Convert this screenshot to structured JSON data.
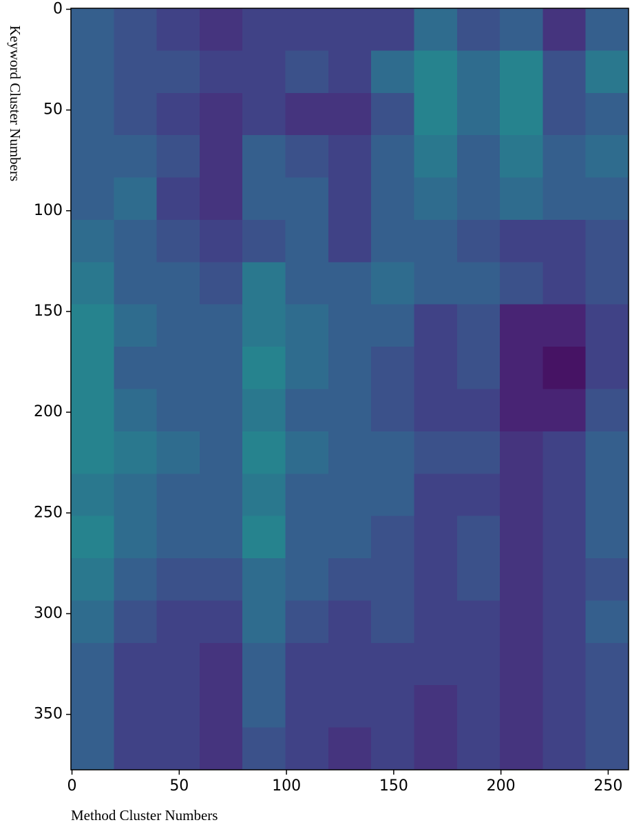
{
  "chart_data": {
    "type": "heatmap",
    "x_label": "Method Cluster Numbers",
    "y_label": "Keyword Cluster Numbers",
    "xlim": [
      -0.5,
      259.5
    ],
    "ylim": [
      -0.5,
      377.5
    ],
    "y_inverted": true,
    "xticks": [
      0,
      50,
      100,
      150,
      200,
      250
    ],
    "yticks": [
      0,
      50,
      100,
      150,
      200,
      250,
      300,
      350
    ],
    "x_bins": [
      -0.5,
      19.5,
      39.5,
      59.5,
      79.5,
      99.5,
      119.5,
      139.5,
      159.5,
      179.5,
      199.5,
      219.5,
      239.5,
      259.5
    ],
    "y_bins": [
      -0.5,
      20.5,
      41.5,
      62.5,
      83.5,
      104.5,
      125.5,
      146.5,
      167.5,
      188.5,
      209.5,
      230.5,
      251.5,
      272.5,
      293.5,
      314.5,
      335.5,
      356.5,
      377.5
    ],
    "colormap": "viridis",
    "zlim": [
      0,
      1
    ],
    "z": [
      [
        0.3,
        0.25,
        0.2,
        0.15,
        0.2,
        0.2,
        0.2,
        0.2,
        0.35,
        0.25,
        0.3,
        0.15,
        0.3
      ],
      [
        0.3,
        0.25,
        0.25,
        0.2,
        0.2,
        0.25,
        0.2,
        0.35,
        0.45,
        0.35,
        0.45,
        0.25,
        0.4
      ],
      [
        0.3,
        0.25,
        0.2,
        0.15,
        0.2,
        0.15,
        0.15,
        0.25,
        0.45,
        0.35,
        0.45,
        0.25,
        0.3
      ],
      [
        0.3,
        0.3,
        0.25,
        0.15,
        0.3,
        0.25,
        0.2,
        0.3,
        0.4,
        0.3,
        0.4,
        0.3,
        0.35
      ],
      [
        0.3,
        0.35,
        0.2,
        0.15,
        0.3,
        0.3,
        0.2,
        0.3,
        0.35,
        0.3,
        0.35,
        0.3,
        0.3
      ],
      [
        0.35,
        0.3,
        0.25,
        0.2,
        0.25,
        0.3,
        0.2,
        0.3,
        0.3,
        0.25,
        0.2,
        0.2,
        0.25
      ],
      [
        0.4,
        0.3,
        0.3,
        0.25,
        0.4,
        0.3,
        0.3,
        0.35,
        0.3,
        0.3,
        0.25,
        0.2,
        0.25
      ],
      [
        0.45,
        0.35,
        0.3,
        0.3,
        0.4,
        0.35,
        0.3,
        0.3,
        0.2,
        0.25,
        0.1,
        0.1,
        0.2
      ],
      [
        0.45,
        0.3,
        0.3,
        0.3,
        0.45,
        0.35,
        0.3,
        0.25,
        0.2,
        0.25,
        0.1,
        0.05,
        0.2
      ],
      [
        0.45,
        0.35,
        0.3,
        0.3,
        0.4,
        0.3,
        0.3,
        0.25,
        0.2,
        0.2,
        0.1,
        0.1,
        0.25
      ],
      [
        0.45,
        0.4,
        0.35,
        0.3,
        0.45,
        0.35,
        0.3,
        0.3,
        0.25,
        0.25,
        0.15,
        0.2,
        0.3
      ],
      [
        0.4,
        0.35,
        0.3,
        0.3,
        0.4,
        0.3,
        0.3,
        0.3,
        0.2,
        0.2,
        0.15,
        0.2,
        0.3
      ],
      [
        0.45,
        0.35,
        0.3,
        0.3,
        0.45,
        0.3,
        0.3,
        0.25,
        0.2,
        0.25,
        0.15,
        0.2,
        0.3
      ],
      [
        0.4,
        0.3,
        0.25,
        0.25,
        0.35,
        0.3,
        0.25,
        0.25,
        0.2,
        0.25,
        0.15,
        0.2,
        0.25
      ],
      [
        0.35,
        0.25,
        0.2,
        0.2,
        0.35,
        0.25,
        0.2,
        0.25,
        0.2,
        0.2,
        0.15,
        0.2,
        0.3
      ],
      [
        0.3,
        0.2,
        0.2,
        0.15,
        0.3,
        0.2,
        0.2,
        0.2,
        0.2,
        0.2,
        0.15,
        0.2,
        0.25
      ],
      [
        0.3,
        0.2,
        0.2,
        0.15,
        0.3,
        0.2,
        0.2,
        0.2,
        0.15,
        0.2,
        0.15,
        0.2,
        0.25
      ],
      [
        0.3,
        0.2,
        0.2,
        0.15,
        0.25,
        0.2,
        0.15,
        0.2,
        0.15,
        0.2,
        0.15,
        0.2,
        0.25
      ]
    ]
  }
}
